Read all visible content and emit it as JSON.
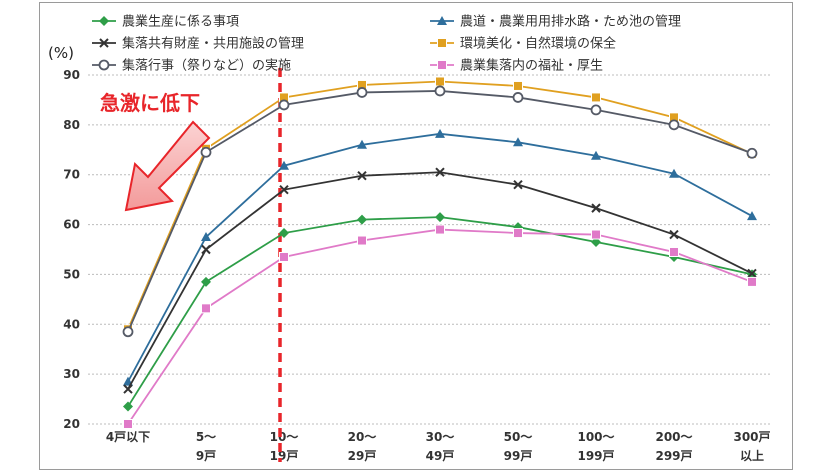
{
  "chart_data": {
    "type": "line",
    "categories": [
      [
        "4戸以下"
      ],
      [
        "5～",
        "9戸"
      ],
      [
        "10～",
        "19戸"
      ],
      [
        "20～",
        "29戸"
      ],
      [
        "30～",
        "49戸"
      ],
      [
        "50～",
        "99戸"
      ],
      [
        "100～",
        "199戸"
      ],
      [
        "200～",
        "299戸"
      ],
      [
        "300戸",
        "以上"
      ]
    ],
    "unit_label": "(%)",
    "ylim": [
      20,
      90
    ],
    "yticks": [
      20,
      30,
      40,
      50,
      60,
      70,
      80,
      90
    ],
    "grid": true,
    "legend": "top",
    "annotation": "急激に低下",
    "divider_after_category": 2,
    "series": [
      {
        "name": "農業生産に係る事項",
        "color": "#2e9e48",
        "marker": "diamond",
        "values": [
          23.5,
          48.5,
          58.3,
          61.0,
          61.5,
          59.5,
          56.5,
          53.5,
          50.0
        ]
      },
      {
        "name": "農道・農業用用排水路・ため池の管理",
        "color": "#2e6e9c",
        "marker": "triangle",
        "values": [
          28.5,
          57.5,
          71.8,
          76.0,
          78.2,
          76.5,
          73.8,
          70.2,
          61.7
        ]
      },
      {
        "name": "集落共有財産・共用施設の管理",
        "color": "#333333",
        "marker": "x",
        "values": [
          27.0,
          55.0,
          67.0,
          69.8,
          70.5,
          68.0,
          63.3,
          58.0,
          50.2
        ]
      },
      {
        "name": "環境美化・自然環境の保全",
        "color": "#e0a020",
        "marker": "square",
        "values": [
          39.0,
          75.2,
          85.5,
          88.0,
          88.7,
          87.8,
          85.5,
          81.5,
          74.2
        ]
      },
      {
        "name": "集落行事（祭りなど）の実施",
        "color": "#555a66",
        "marker": "circle",
        "values": [
          38.5,
          74.5,
          84.0,
          86.5,
          86.8,
          85.5,
          83.0,
          80.0,
          74.3
        ]
      },
      {
        "name": "農業集落内の福祉・厚生",
        "color": "#e07ac8",
        "marker": "square",
        "values": [
          20.0,
          43.2,
          53.5,
          56.8,
          59.0,
          58.3,
          58.0,
          54.5,
          48.5
        ]
      }
    ]
  }
}
